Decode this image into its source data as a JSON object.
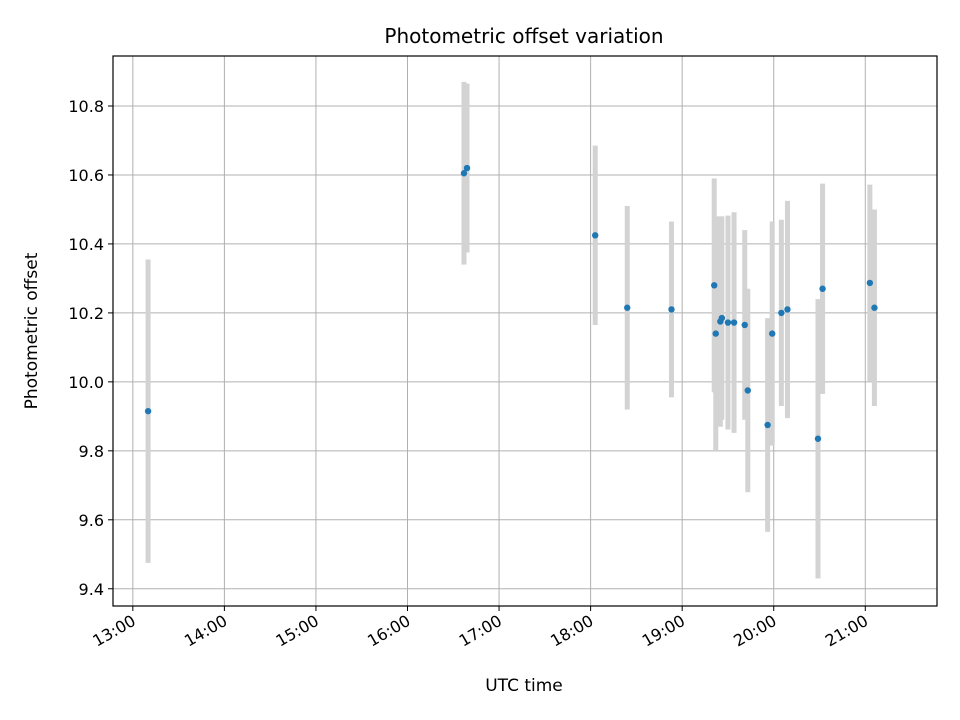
{
  "chart_data": {
    "type": "scatter",
    "title": "Photometric offset variation",
    "xlabel": "UTC time",
    "ylabel": "Photometric offset",
    "xlim": [
      "12:47",
      "21:47"
    ],
    "ylim": [
      9.35,
      10.945
    ],
    "grid": true,
    "x_ticks": [
      "13:00",
      "14:00",
      "15:00",
      "16:00",
      "17:00",
      "18:00",
      "19:00",
      "20:00",
      "21:00"
    ],
    "y_ticks": [
      "9.4",
      "9.6",
      "9.8",
      "10.0",
      "10.2",
      "10.4",
      "10.6",
      "10.8"
    ],
    "colors": {
      "point": "#1f77b4",
      "errorbar": "#d3d3d3",
      "grid": "#b0b0b0"
    },
    "points": [
      {
        "t": "13:10",
        "y": 9.915,
        "err": 0.44
      },
      {
        "t": "16:37",
        "y": 10.605,
        "err": 0.265
      },
      {
        "t": "16:39",
        "y": 10.62,
        "err": 0.245
      },
      {
        "t": "18:03",
        "y": 10.425,
        "err": 0.26
      },
      {
        "t": "18:24",
        "y": 10.215,
        "err": 0.295
      },
      {
        "t": "18:53",
        "y": 10.21,
        "err": 0.255
      },
      {
        "t": "19:21",
        "y": 10.28,
        "err": 0.31
      },
      {
        "t": "19:22",
        "y": 10.14,
        "err": 0.34
      },
      {
        "t": "19:25",
        "y": 10.175,
        "err": 0.305
      },
      {
        "t": "19:26",
        "y": 10.185,
        "err": 0.295
      },
      {
        "t": "19:30",
        "y": 10.172,
        "err": 0.31
      },
      {
        "t": "19:34",
        "y": 10.172,
        "err": 0.32
      },
      {
        "t": "19:41",
        "y": 10.165,
        "err": 0.275
      },
      {
        "t": "19:43",
        "y": 9.975,
        "err": 0.295
      },
      {
        "t": "19:56",
        "y": 9.875,
        "err": 0.31
      },
      {
        "t": "19:59",
        "y": 10.14,
        "err": 0.325
      },
      {
        "t": "20:05",
        "y": 10.2,
        "err": 0.27
      },
      {
        "t": "20:09",
        "y": 10.21,
        "err": 0.315
      },
      {
        "t": "20:29",
        "y": 9.835,
        "err": 0.405
      },
      {
        "t": "20:32",
        "y": 10.27,
        "err": 0.305
      },
      {
        "t": "21:03",
        "y": 10.287,
        "err": 0.285
      },
      {
        "t": "21:06",
        "y": 10.215,
        "err": 0.285
      }
    ]
  }
}
